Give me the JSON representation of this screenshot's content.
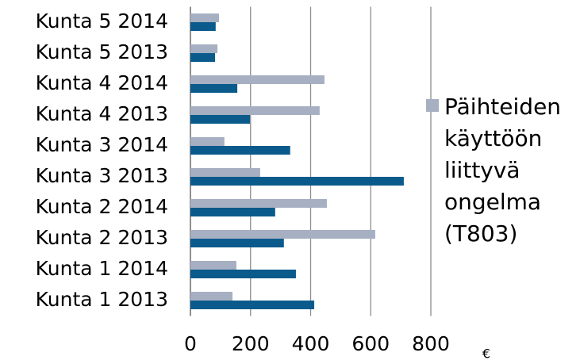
{
  "chart_data": {
    "type": "hbar",
    "categories": [
      "Kunta 1 2013",
      "Kunta 1 2014",
      "Kunta 2 2013",
      "Kunta 2 2014",
      "Kunta 3 2013",
      "Kunta 3 2014",
      "Kunta 4 2013",
      "Kunta 4 2014",
      "Kunta 5 2013",
      "Kunta 5 2014"
    ],
    "series": [
      {
        "color": "#0b5a8c",
        "values": [
          412,
          351,
          311,
          282,
          710,
          332,
          198,
          156,
          82,
          84
        ]
      },
      {
        "name": "Päihteiden käyttöön liittyvä ongelma (T803)",
        "color": "#a6b0c2",
        "values": [
          140,
          153,
          615,
          454,
          232,
          113,
          430,
          446,
          90,
          95
        ]
      }
    ],
    "xlabel": "€",
    "xlim": [
      0,
      800
    ],
    "xticks": [
      0,
      200,
      400,
      600,
      800
    ],
    "grid": true
  }
}
